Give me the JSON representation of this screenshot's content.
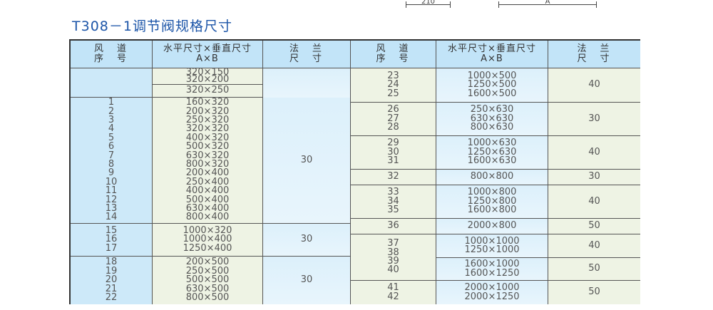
{
  "drawing": {
    "dim_left": "210",
    "dim_right": "A"
  },
  "title": "T308－1调节阀规格尺寸",
  "header": {
    "seq": "风　道\n序　号",
    "size": "水平尺寸×垂直尺寸\nA×B",
    "flange": "法　兰\n尺　寸"
  },
  "left": [
    {
      "seq": "",
      "sizes": [
        "320×150\n320×200",
        "320×250"
      ],
      "flange": ""
    },
    {
      "seq": "1\n2\n3\n4\n5\n6\n7\n8\n9\n10\n11\n12\n13\n14",
      "sizes": [
        "160×320\n200×320\n250×320\n320×320\n400×320\n500×320\n630×320\n800×320\n200×400\n250×400\n400×400\n500×400\n630×400\n800×400"
      ],
      "flange": "30"
    },
    {
      "seq": "15\n16\n17",
      "sizes": [
        "1000×320\n1000×400\n1250×400"
      ],
      "flange": "30"
    },
    {
      "seq": "18\n19\n20\n21\n22",
      "sizes": [
        "200×500\n250×500\n500×500\n630×500\n800×500"
      ],
      "flange": "30"
    }
  ],
  "right": [
    {
      "seq": "23\n24\n25",
      "size": "1000×500\n1250×500\n1600×500",
      "flange": "40"
    },
    {
      "seq": "26\n27\n28",
      "size": "250×630\n630×630\n800×630",
      "flange": "30"
    },
    {
      "seq": "29\n30\n31",
      "size": "1000×630\n1250×630\n1600×630",
      "flange": "40"
    },
    {
      "seq": "32",
      "size": "800×800",
      "flange": "30"
    },
    {
      "seq": "33\n34\n35",
      "size": "1000×800\n1250×800\n1600×800",
      "flange": "40"
    },
    {
      "seq": "36",
      "size": "2000×800",
      "flange": "50"
    },
    {
      "seq": "37\n38\n39\n40",
      "size": "1000×1000\n1250×1000",
      "flange": "40"
    },
    {
      "seq": "",
      "size": "1600×1000\n1600×1250",
      "flange": "50"
    },
    {
      "seq": "41\n42",
      "size": "2000×1000\n2000×1250",
      "flange": "50"
    }
  ]
}
